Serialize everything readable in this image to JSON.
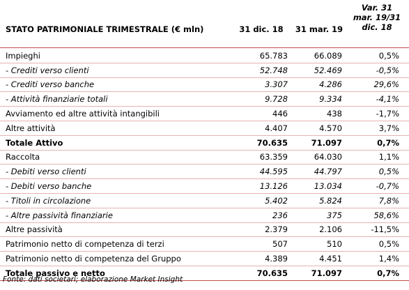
{
  "header": {
    "title": "STATO PATRIMONIALE TRIMESTRALE (€ mln)",
    "col1": "31 dic. 18",
    "col2": "31 mar. 19",
    "col3": "Var. 31\nmar. 19/31\ndic. 18"
  },
  "rows": [
    {
      "label": "Impieghi",
      "v1": "65.783",
      "v2": "66.089",
      "v3": "0,5%",
      "style": ""
    },
    {
      "label": "- Crediti verso clienti",
      "v1": "52.748",
      "v2": "52.469",
      "v3": "-0,5%",
      "style": "it"
    },
    {
      "label": "- Crediti verso banche",
      "v1": "3.307",
      "v2": "4.286",
      "v3": "29,6%",
      "style": "it"
    },
    {
      "label": "- Attività finanziarie totali",
      "v1": "9.728",
      "v2": "9.334",
      "v3": "-4,1%",
      "style": "it"
    },
    {
      "label": "Avviamento ed altre attività intangibili",
      "v1": "446",
      "v2": "438",
      "v3": "-1,7%",
      "style": ""
    },
    {
      "label": "Altre attività",
      "v1": "4.407",
      "v2": "4.570",
      "v3": "3,7%",
      "style": ""
    },
    {
      "label": "Totale Attivo",
      "v1": "70.635",
      "v2": "71.097",
      "v3": "0,7%",
      "style": "bold"
    },
    {
      "label": "Raccolta",
      "v1": "63.359",
      "v2": "64.030",
      "v3": "1,1%",
      "style": ""
    },
    {
      "label": "- Debiti verso clienti",
      "v1": "44.595",
      "v2": "44.797",
      "v3": "0,5%",
      "style": "it"
    },
    {
      "label": "- Debiti verso banche",
      "v1": "13.126",
      "v2": "13.034",
      "v3": "-0,7%",
      "style": "it"
    },
    {
      "label": "- Titoli in circolazione",
      "v1": "5.402",
      "v2": "5.824",
      "v3": "7,8%",
      "style": "it"
    },
    {
      "label": "- Altre passività finanziarie",
      "v1": "236",
      "v2": "375",
      "v3": "58,6%",
      "style": "it"
    },
    {
      "label": "Altre passività",
      "v1": "2.379",
      "v2": "2.106",
      "v3": "-11,5%",
      "style": ""
    },
    {
      "label": "Patrimonio netto di competenza di terzi",
      "v1": "507",
      "v2": "510",
      "v3": "0,5%",
      "style": ""
    },
    {
      "label": "Patrimonio netto di competenza del Gruppo",
      "v1": "4.389",
      "v2": "4.451",
      "v3": "1,4%",
      "style": ""
    },
    {
      "label": "Totale passivo e netto",
      "v1": "70.635",
      "v2": "71.097",
      "v3": "0,7%",
      "style": "bold last"
    }
  ],
  "source": "Fonte: dati societari; elaborazione Market Insight"
}
